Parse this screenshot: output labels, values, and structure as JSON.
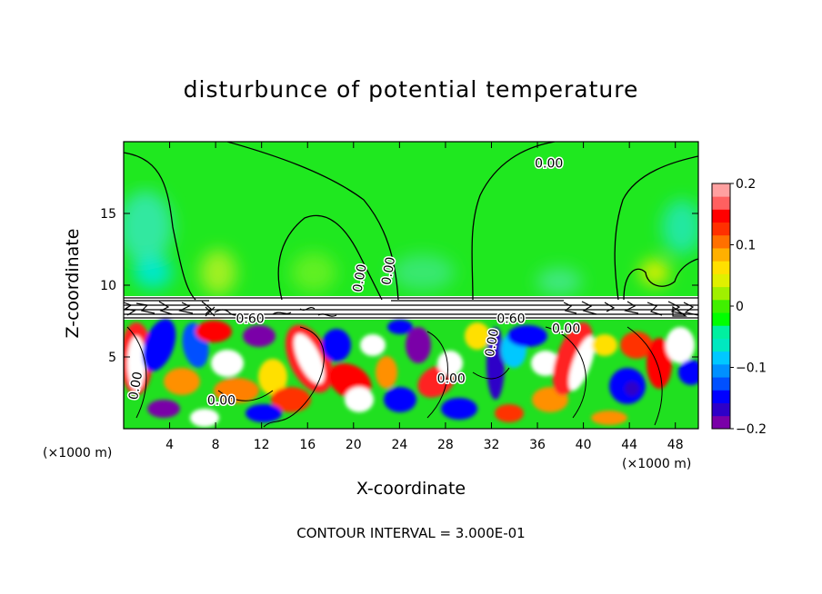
{
  "chart_data": {
    "type": "heatmap",
    "title": "disturbunce of potential temperature",
    "xlabel": "X-coordinate",
    "ylabel": "Z-coordinate",
    "x_unit_left": "(×1000 m)",
    "x_unit_right": "(×1000 m)",
    "xlim": [
      0,
      50
    ],
    "ylim": [
      0,
      20
    ],
    "x_ticks": [
      4,
      8,
      12,
      16,
      20,
      24,
      28,
      32,
      36,
      40,
      44,
      48
    ],
    "y_ticks": [
      5,
      10,
      15
    ],
    "colorbar": {
      "range": [
        -0.2,
        0.2
      ],
      "ticks": [
        -0.2,
        -0.1,
        0,
        0.1,
        0.2
      ],
      "tick_labels": [
        "−0.2",
        "−0.1",
        "0",
        "0.1",
        "0.2"
      ],
      "colors": [
        "#7a00a8",
        "#2d00c8",
        "#0000ff",
        "#0050ff",
        "#0090ff",
        "#00c8ff",
        "#00e8c0",
        "#00f0a0",
        "#00ff00",
        "#40f000",
        "#a0f000",
        "#e0f000",
        "#ffe000",
        "#ffb000",
        "#ff7000",
        "#ff3000",
        "#ff0000",
        "#ff6060",
        "#ffa0a0"
      ]
    },
    "contour_labels": [
      {
        "text": "0.00",
        "x": 37,
        "z": 18.5
      },
      {
        "text": "0.00",
        "x": 20.5,
        "z": 10.5
      },
      {
        "text": "0.00",
        "x": 23,
        "z": 11
      },
      {
        "text": "0.60",
        "x": 11,
        "z": 7.7
      },
      {
        "text": "0.60",
        "x": 33.7,
        "z": 7.7
      },
      {
        "text": "0.00",
        "x": 1,
        "z": 3
      },
      {
        "text": "0.00",
        "x": 8.5,
        "z": 2
      },
      {
        "text": "0.00",
        "x": 28.5,
        "z": 3.5
      },
      {
        "text": "0.00",
        "x": 32,
        "z": 6
      },
      {
        "text": "0.00",
        "x": 38.5,
        "z": 7
      }
    ],
    "contour_interval_text": "CONTOUR INTERVAL = 3.000E-01"
  }
}
